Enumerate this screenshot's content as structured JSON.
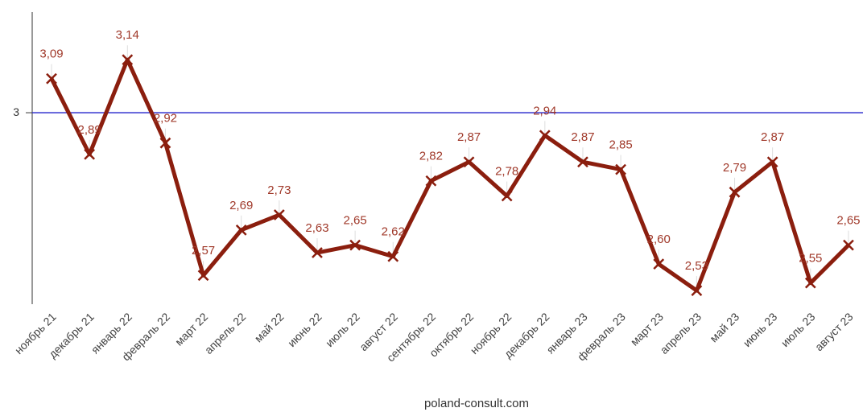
{
  "chart_data": {
    "type": "line",
    "categories": [
      "ноябрь 21",
      "декабрь 21",
      "январь 22",
      "февраль 22",
      "март 22",
      "апрель 22",
      "май 22",
      "июнь 22",
      "июль 22",
      "август 22",
      "сентябрь 22",
      "октябрь 22",
      "ноябрь 22",
      "декабрь 22",
      "январь 23",
      "февраль 23",
      "март 23",
      "апрель 23",
      "май 23",
      "июнь 23",
      "июль 23",
      "август 23"
    ],
    "values": [
      3.09,
      2.89,
      3.14,
      2.92,
      2.57,
      2.69,
      2.73,
      2.63,
      2.65,
      2.62,
      2.82,
      2.87,
      2.78,
      2.94,
      2.87,
      2.85,
      2.6,
      2.53,
      2.79,
      2.87,
      2.55,
      2.65
    ],
    "value_labels": [
      "3,09",
      "2,89",
      "3,14",
      "2,92",
      "2,57",
      "2,69",
      "2,73",
      "2,63",
      "2,65",
      "2,62",
      "2,82",
      "2,87",
      "2,78",
      "2,94",
      "2,87",
      "2,85",
      "2,60",
      "2,53",
      "2,79",
      "2,87",
      "2,55",
      "2,65"
    ],
    "color": "#8b1e0e",
    "ylim": [
      2.494,
      3.266
    ],
    "yticks": [
      3
    ],
    "grid": true,
    "grid_color": "#2222cc",
    "caption": "poland-consult.com"
  }
}
